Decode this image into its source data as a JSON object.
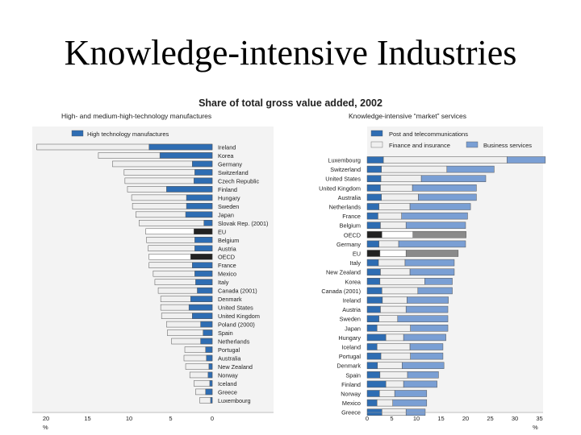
{
  "slide": {
    "title": "Knowledge-intensive Industries"
  },
  "figure": {
    "title": "Share of total gross value added, 2002",
    "left_subtitle": "High- and medium-high-technology manufactures",
    "right_subtitle": "Knowledge-intensive “market” services"
  },
  "colors": {
    "blue": "#2e6db3",
    "light_blue": "#7a9fd4",
    "light_gray": "#f0f0f0",
    "dark": "#222222",
    "gray": "#8a8a8a",
    "panel_bg": "#f3f3f3"
  },
  "chart_data": [
    {
      "type": "bar",
      "orientation": "horizontal-reversed",
      "title": "High- and medium-high-technology manufactures",
      "legend": [
        "High technology manufactures"
      ],
      "x_ticks": [
        "20",
        "15",
        "10",
        "5",
        "0"
      ],
      "x_unit": "%",
      "xlim": [
        0,
        21.5
      ],
      "categories": [
        "Ireland",
        "Korea",
        "Germany",
        "Switzerland",
        "Czech Republic",
        "Finland",
        "Hungary",
        "Sweden",
        "Japan",
        "Slovak Rep. (2001)",
        "EU",
        "Belgium",
        "Austria",
        "OECD",
        "France",
        "Mexico",
        "Italy",
        "Canada (2001)",
        "Denmark",
        "United States",
        "United Kingdom",
        "Poland (2000)",
        "Spain",
        "Netherlands",
        "Portugal",
        "Australia",
        "New Zealand",
        "Norway",
        "Iceland",
        "Greece",
        "Luxembourg"
      ],
      "series": [
        {
          "name": "High technology manufactures",
          "values": [
            7.6,
            6.3,
            2.4,
            2.1,
            2.2,
            5.5,
            3.1,
            3.1,
            3.2,
            1.0,
            2.2,
            2.1,
            2.1,
            2.6,
            2.4,
            2.1,
            2.0,
            1.8,
            2.6,
            2.8,
            2.4,
            1.4,
            1.1,
            1.4,
            0.8,
            0.7,
            0.4,
            0.5,
            0.3,
            0.8,
            0.2
          ]
        },
        {
          "name": "",
          "values": [
            13.5,
            7.4,
            9.6,
            8.5,
            8.3,
            4.7,
            6.6,
            6.5,
            6.0,
            7.8,
            5.8,
            5.8,
            5.6,
            5.0,
            5.2,
            5.0,
            4.9,
            4.7,
            3.6,
            3.4,
            3.7,
            4.1,
            4.3,
            3.5,
            2.5,
            2.7,
            2.8,
            2.2,
            1.9,
            1.2,
            1.3
          ]
        }
      ],
      "highlight": [
        "EU",
        "OECD"
      ]
    },
    {
      "type": "bar",
      "orientation": "horizontal-stacked",
      "title": "Knowledge-intensive “market” services",
      "legend": [
        "Post and telecommunications",
        "Finance and insurance",
        "Business services"
      ],
      "x_ticks": [
        "0",
        "5",
        "10",
        "15",
        "20",
        "25",
        "30",
        "35"
      ],
      "x_unit": "%",
      "xlim": [
        0,
        37
      ],
      "categories": [
        "Luxembourg",
        "Switzerland",
        "United States",
        "United Kingdom",
        "Australia",
        "Netherlands",
        "France",
        "Belgium",
        "OECD",
        "Germany",
        "EU",
        "Italy",
        "New Zealand",
        "Korea",
        "Canada (2001)",
        "Ireland",
        "Austria",
        "Sweden",
        "Japan",
        "Hungary",
        "Iceland",
        "Portugal",
        "Denmark",
        "Spain",
        "Finland",
        "Norway",
        "Mexico",
        "Greece"
      ],
      "series": [
        {
          "name": "Post and telecommunications",
          "values": [
            3.3,
            2.9,
            2.8,
            2.7,
            2.9,
            2.4,
            2.2,
            2.7,
            3.0,
            2.4,
            2.6,
            2.3,
            2.7,
            2.6,
            3.0,
            3.1,
            2.7,
            2.4,
            2.0,
            3.8,
            2.0,
            2.8,
            2.1,
            2.6,
            3.8,
            2.5,
            2.0,
            3.0
          ]
        },
        {
          "name": "Finance and insurance",
          "values": [
            25.1,
            13.3,
            8.2,
            6.5,
            7.5,
            6.3,
            4.8,
            5.2,
            6.3,
            4.0,
            5.3,
            5.4,
            6.0,
            9.1,
            7.3,
            5.0,
            5.2,
            3.8,
            6.8,
            3.6,
            6.7,
            6.0,
            5.0,
            5.6,
            3.6,
            3.1,
            3.2,
            4.9
          ]
        },
        {
          "name": "Business services",
          "values": [
            7.8,
            9.6,
            13.1,
            13.0,
            11.8,
            12.3,
            13.4,
            12.1,
            10.8,
            13.6,
            10.6,
            10.0,
            9.0,
            5.6,
            7.0,
            8.4,
            8.5,
            10.2,
            7.6,
            8.6,
            6.7,
            6.6,
            8.5,
            6.3,
            6.8,
            6.5,
            6.9,
            3.9
          ]
        }
      ],
      "highlight": [
        "OECD",
        "EU"
      ]
    }
  ]
}
